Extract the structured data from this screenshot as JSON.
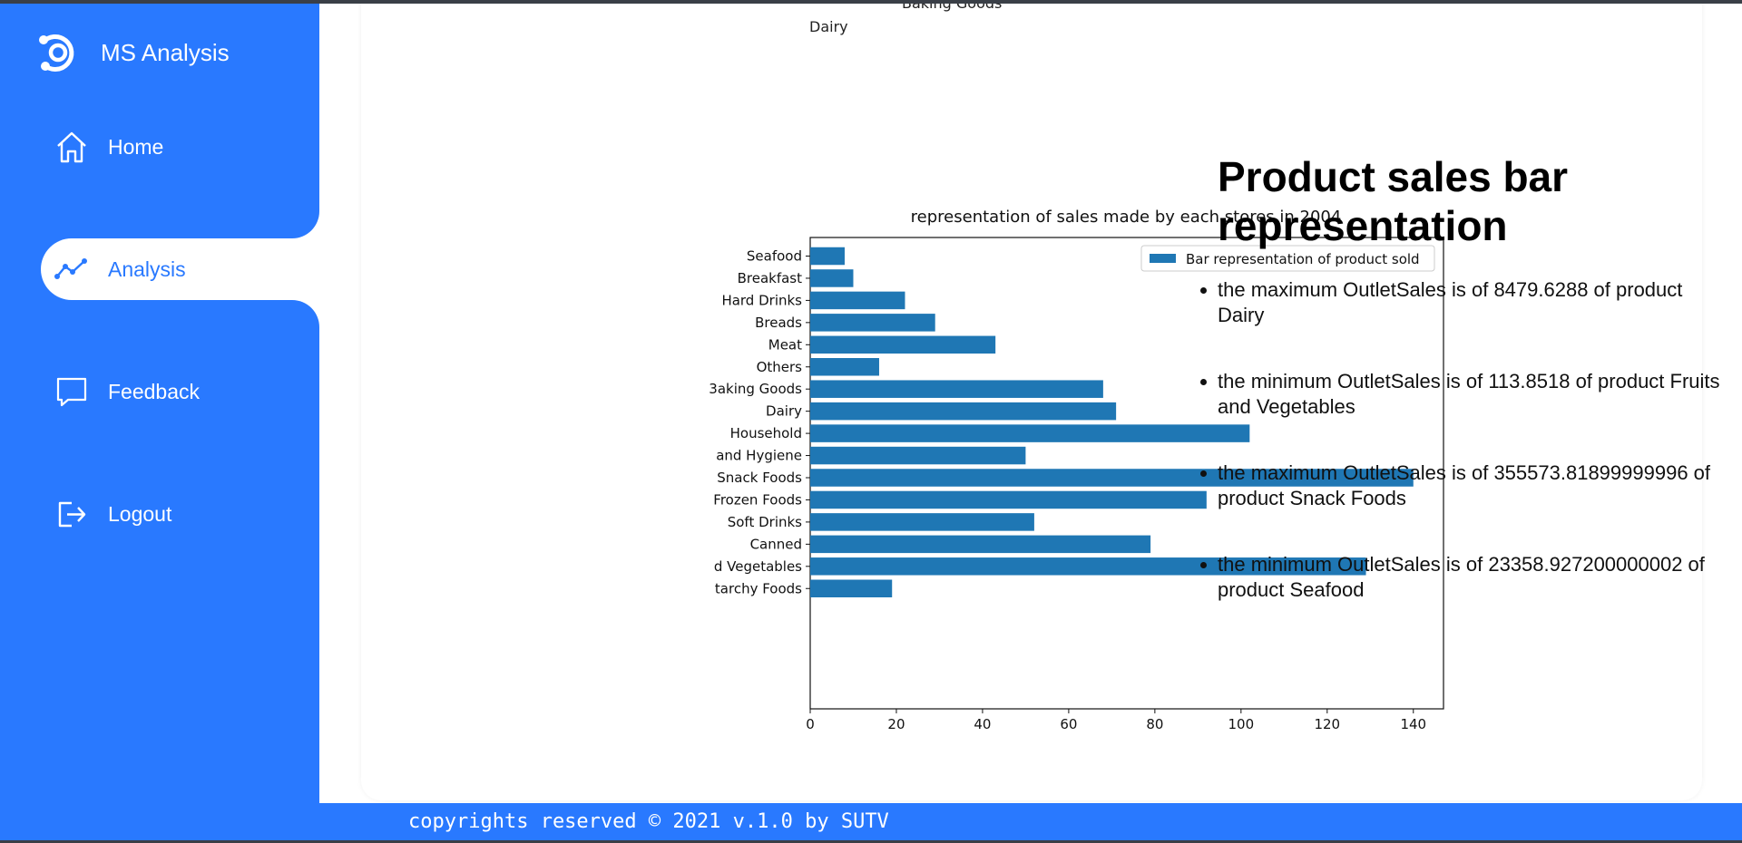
{
  "app": {
    "name": "MS Analysis",
    "accent": "#2979ff"
  },
  "sidebar": {
    "items": [
      {
        "label": "Home",
        "icon": "home-icon",
        "active": false
      },
      {
        "label": "Analysis",
        "icon": "trend-line-icon",
        "active": true
      },
      {
        "label": "Feedback",
        "icon": "chat-bubble-icon",
        "active": false
      },
      {
        "label": "Logout",
        "icon": "logout-icon",
        "active": false
      }
    ]
  },
  "pie_fragment": {
    "labels": [
      "Dairy",
      "Baking Goods"
    ]
  },
  "chart_data": {
    "type": "bar",
    "orientation": "horizontal",
    "title": "representation of sales made by each stores in 2004",
    "legend": "Bar representation of product sold",
    "legend_position": "top-right",
    "categories": [
      "Seafood",
      "Breakfast",
      "Hard Drinks",
      "Breads",
      "Meat",
      "Others",
      "Baking Goods",
      "Dairy",
      "Household",
      "Health and Hygiene",
      "Snack Foods",
      "Frozen Foods",
      "Soft Drinks",
      "Canned",
      "Fruits and Vegetables",
      "Starchy Foods"
    ],
    "tick_labels": [
      "Seafood",
      "Breakfast",
      "Hard Drinks",
      "Breads",
      "Meat",
      "Others",
      "3aking Goods",
      "Dairy",
      "Household",
      "and Hygiene",
      "Snack Foods",
      "Frozen Foods",
      "Soft Drinks",
      "Canned",
      "d Vegetables",
      "tarchy Foods"
    ],
    "values": [
      8,
      10,
      22,
      29,
      43,
      16,
      68,
      71,
      102,
      50,
      140,
      92,
      52,
      79,
      129,
      19
    ],
    "xlim": [
      0,
      147
    ],
    "xticks": [
      0,
      20,
      40,
      60,
      80,
      100,
      120,
      140
    ],
    "bar_color": "#1f77b4",
    "grid": false
  },
  "info": {
    "title": "Product sales bar representation",
    "bullets": [
      "the maximum OutletSales is of 8479.6288 of product Dairy",
      "the minimum OutletSales is of 113.8518 of product Fruits and Vegetables",
      "the maximum OutletSales is of 355573.81899999996 of product Snack Foods",
      "the minimum OutletSales is of 23358.927200000002 of product Seafood"
    ]
  },
  "footer": {
    "text": "copyrights reserved © 2021 v.1.0 by SUTV"
  }
}
